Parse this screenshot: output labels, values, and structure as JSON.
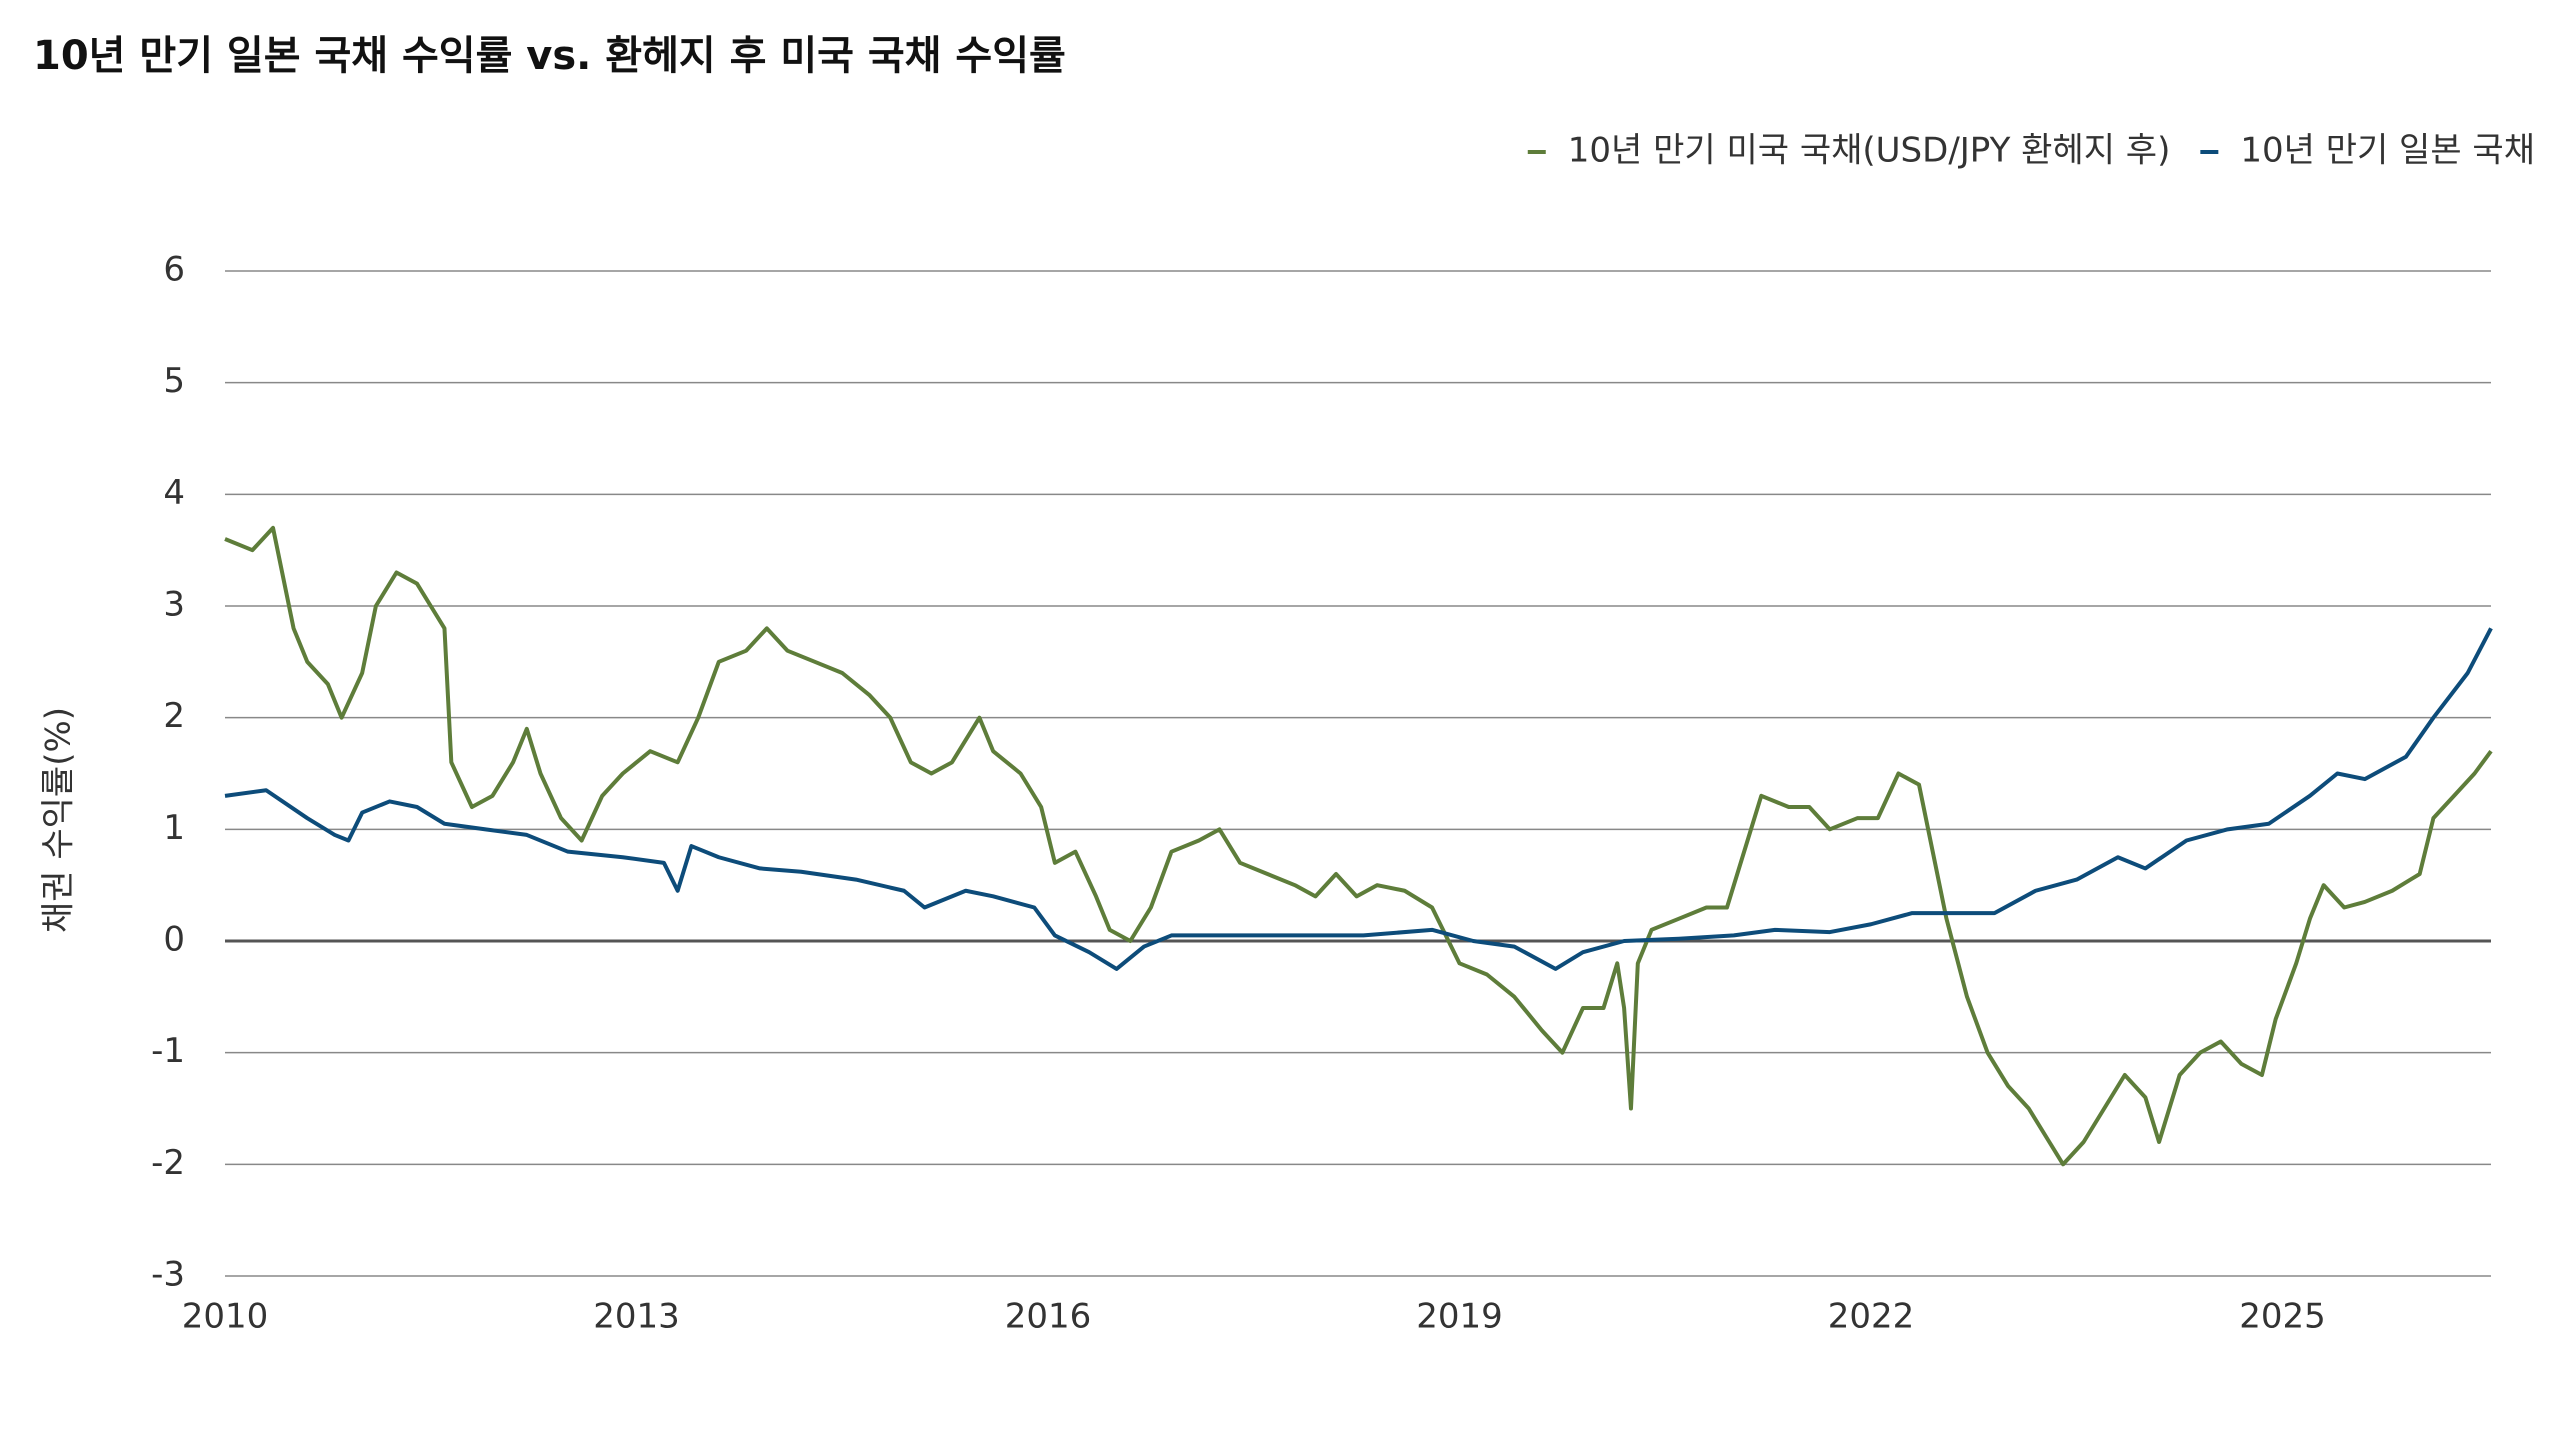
{
  "chart_data": {
    "type": "line",
    "title": "10년 만기 일본 국채 수익률 vs. 환헤지 후 미국 국채 수익률",
    "y_label": "채권 수익률(%)",
    "xlim": [
      2010,
      2026.52
    ],
    "xticks": [
      2010,
      2013,
      2016,
      2019,
      2022,
      2025
    ],
    "ylim": [
      -3,
      6
    ],
    "yticks": [
      -3,
      -2,
      -1,
      0,
      1,
      2,
      3,
      4,
      5,
      6
    ],
    "grid": true,
    "legend": "top-right",
    "series": [
      {
        "name": "10년 만기 미국 국채(USD/JPY 환헤지 후)",
        "color": "#5e7d3a",
        "x": [
          2010.0,
          2010.2,
          2010.35,
          2010.5,
          2010.6,
          2010.75,
          2010.85,
          2011.0,
          2011.1,
          2011.25,
          2011.4,
          2011.5,
          2011.6,
          2011.65,
          2011.8,
          2011.95,
          2012.1,
          2012.2,
          2012.3,
          2012.45,
          2012.6,
          2012.75,
          2012.9,
          2013.1,
          2013.3,
          2013.45,
          2013.6,
          2013.8,
          2013.95,
          2014.1,
          2014.3,
          2014.5,
          2014.7,
          2014.85,
          2015.0,
          2015.15,
          2015.3,
          2015.5,
          2015.6,
          2015.8,
          2015.95,
          2016.05,
          2016.2,
          2016.35,
          2016.45,
          2016.6,
          2016.75,
          2016.9,
          2017.1,
          2017.25,
          2017.4,
          2017.6,
          2017.8,
          2017.95,
          2018.1,
          2018.25,
          2018.4,
          2018.6,
          2018.8,
          2019.0,
          2019.2,
          2019.4,
          2019.6,
          2019.75,
          2019.9,
          2020.05,
          2020.15,
          2020.2,
          2020.25,
          2020.3,
          2020.4,
          2020.6,
          2020.8,
          2020.95,
          2021.1,
          2021.2,
          2021.4,
          2021.55,
          2021.7,
          2021.9,
          2022.05,
          2022.2,
          2022.35,
          2022.45,
          2022.55,
          2022.7,
          2022.85,
          2023.0,
          2023.15,
          2023.3,
          2023.4,
          2023.55,
          2023.7,
          2023.85,
          2024.0,
          2024.1,
          2024.25,
          2024.4,
          2024.55,
          2024.7,
          2024.85,
          2024.95,
          2025.1,
          2025.2,
          2025.3,
          2025.45,
          2025.6,
          2025.8,
          2026.0,
          2026.1,
          2026.25,
          2026.4,
          2026.52
        ],
        "values": [
          3.6,
          3.5,
          3.7,
          2.8,
          2.5,
          2.3,
          2.0,
          2.4,
          3.0,
          3.3,
          3.2,
          3.0,
          2.8,
          1.6,
          1.2,
          1.3,
          1.6,
          1.9,
          1.5,
          1.1,
          0.9,
          1.3,
          1.5,
          1.7,
          1.6,
          2.0,
          2.5,
          2.6,
          2.8,
          2.6,
          2.5,
          2.4,
          2.2,
          2.0,
          1.6,
          1.5,
          1.6,
          2.0,
          1.7,
          1.5,
          1.2,
          0.7,
          0.8,
          0.4,
          0.1,
          0.0,
          0.3,
          0.8,
          0.9,
          1.0,
          0.7,
          0.6,
          0.5,
          0.4,
          0.6,
          0.4,
          0.5,
          0.45,
          0.3,
          -0.2,
          -0.3,
          -0.5,
          -0.8,
          -1.0,
          -0.6,
          -0.6,
          -0.2,
          -0.6,
          -1.5,
          -0.2,
          0.1,
          0.2,
          0.3,
          0.3,
          0.9,
          1.3,
          1.2,
          1.2,
          1.0,
          1.1,
          1.1,
          1.5,
          1.4,
          0.8,
          0.2,
          -0.5,
          -1.0,
          -1.3,
          -1.5,
          -1.8,
          -2.0,
          -1.8,
          -1.5,
          -1.2,
          -1.4,
          -1.8,
          -1.2,
          -1.0,
          -0.9,
          -1.1,
          -1.2,
          -0.7,
          -0.2,
          0.2,
          0.5,
          0.3,
          0.35,
          0.45,
          0.6,
          1.1,
          1.3,
          1.5,
          1.7
        ]
      },
      {
        "name": "10년 만기 일본 국채",
        "color": "#0d4c7a",
        "x": [
          2010.0,
          2010.3,
          2010.6,
          2010.8,
          2010.9,
          2011.0,
          2011.2,
          2011.4,
          2011.6,
          2011.9,
          2012.2,
          2012.5,
          2012.9,
          2013.2,
          2013.3,
          2013.4,
          2013.6,
          2013.9,
          2014.2,
          2014.6,
          2014.95,
          2015.1,
          2015.4,
          2015.6,
          2015.9,
          2016.05,
          2016.3,
          2016.5,
          2016.7,
          2016.9,
          2017.3,
          2017.8,
          2018.3,
          2018.8,
          2019.1,
          2019.4,
          2019.7,
          2019.9,
          2020.2,
          2020.6,
          2021.0,
          2021.3,
          2021.7,
          2022.0,
          2022.3,
          2022.6,
          2022.9,
          2023.2,
          2023.5,
          2023.8,
          2024.0,
          2024.3,
          2024.6,
          2024.9,
          2025.2,
          2025.4,
          2025.6,
          2025.9,
          2026.1,
          2026.35,
          2026.52
        ],
        "values": [
          1.3,
          1.35,
          1.1,
          0.95,
          0.9,
          1.15,
          1.25,
          1.2,
          1.05,
          1.0,
          0.95,
          0.8,
          0.75,
          0.7,
          0.45,
          0.85,
          0.75,
          0.65,
          0.62,
          0.55,
          0.45,
          0.3,
          0.45,
          0.4,
          0.3,
          0.05,
          -0.1,
          -0.25,
          -0.05,
          0.05,
          0.05,
          0.05,
          0.05,
          0.1,
          0.0,
          -0.05,
          -0.25,
          -0.1,
          0.0,
          0.02,
          0.05,
          0.1,
          0.08,
          0.15,
          0.25,
          0.25,
          0.25,
          0.45,
          0.55,
          0.75,
          0.65,
          0.9,
          1.0,
          1.05,
          1.3,
          1.5,
          1.45,
          1.65,
          2.0,
          2.4,
          2.8
        ]
      }
    ]
  }
}
